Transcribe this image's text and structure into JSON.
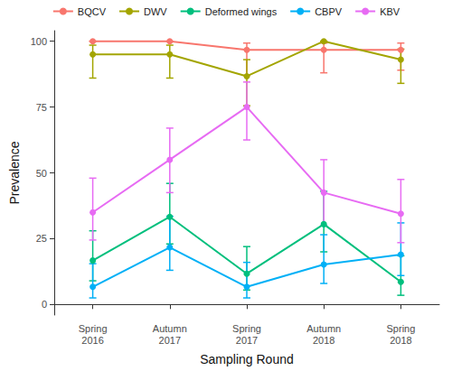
{
  "chart_data": {
    "type": "line",
    "x_label": "Sampling Round",
    "y_label": "Prevalence",
    "categories": [
      "Spring\n2016",
      "Autumn\n2017",
      "Spring\n2017",
      "Autumn\n2018",
      "Spring\n2018"
    ],
    "ylim": [
      -4,
      104
    ],
    "yticks": [
      0,
      25,
      50,
      75,
      100
    ],
    "grid": false,
    "legend": "top",
    "marker": "circle",
    "series": [
      {
        "name": "BQCV",
        "color": "#F8766D",
        "values": [
          100,
          100,
          96.7,
          96.7,
          96.7
        ],
        "lower": [
          100,
          100,
          87,
          88,
          89
        ],
        "upper": [
          100,
          100,
          99.3,
          99.3,
          99.3
        ]
      },
      {
        "name": "DWV",
        "color": "#A3A500",
        "values": [
          95,
          95,
          86.7,
          100,
          93
        ],
        "lower": [
          86,
          86,
          75.5,
          100,
          84
        ],
        "upper": [
          98.5,
          98.5,
          93,
          100,
          97
        ]
      },
      {
        "name": "Deformed wings",
        "color": "#00BF7D",
        "values": [
          16.7,
          33.3,
          11.7,
          30.5,
          8.6
        ],
        "lower": [
          9,
          23,
          5.5,
          20,
          3.5
        ],
        "upper": [
          28,
          46,
          22,
          43,
          18.5
        ]
      },
      {
        "name": "CBPV",
        "color": "#00B0F6",
        "values": [
          6.7,
          21.7,
          6.7,
          15.2,
          19
        ],
        "lower": [
          2.5,
          13,
          2.5,
          8,
          11
        ],
        "upper": [
          15.5,
          33.5,
          16,
          26.5,
          31
        ]
      },
      {
        "name": "KBV",
        "color": "#E76BF3",
        "values": [
          35,
          55,
          75,
          42.5,
          34.5
        ],
        "lower": [
          24.5,
          42.5,
          62.5,
          30,
          23.5
        ],
        "upper": [
          48,
          67,
          84.5,
          55,
          47.5
        ]
      }
    ]
  }
}
